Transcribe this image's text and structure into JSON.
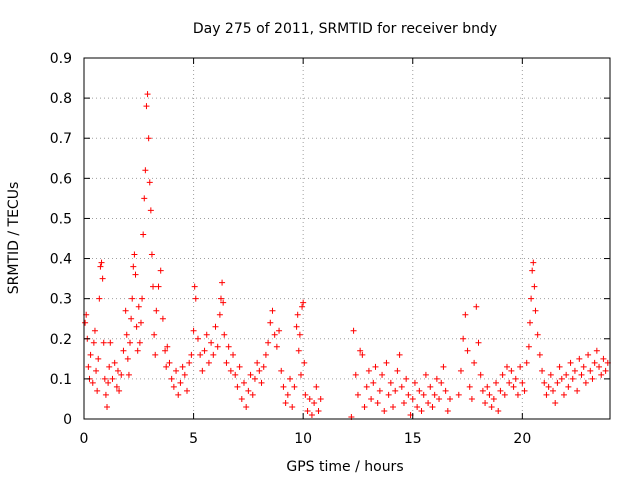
{
  "chart_data": {
    "type": "scatter",
    "title": "Day 275 of 2011, SRMTID for receiver bndy",
    "xlabel": "GPS time / hours",
    "ylabel": "SRMTID / TECUs",
    "xlim": [
      0,
      24
    ],
    "ylim": [
      0,
      0.9
    ],
    "xticks": [
      0,
      5,
      10,
      15,
      20
    ],
    "xtick_labels": [
      "0",
      "5",
      "10",
      "15",
      "20"
    ],
    "yticks": [
      0,
      0.1,
      0.2,
      0.3,
      0.4,
      0.5,
      0.6,
      0.7,
      0.8,
      0.9
    ],
    "ytick_labels": [
      "0",
      "0.1",
      "0.2",
      "0.3",
      "0.4",
      "0.5",
      "0.6",
      "0.7",
      "0.8",
      "0.9"
    ],
    "grid": true,
    "marker": "+",
    "color": "#ff0000",
    "series": [
      {
        "name": "SRMTID",
        "points": [
          [
            0.05,
            0.24
          ],
          [
            0.1,
            0.26
          ],
          [
            0.15,
            0.2
          ],
          [
            0.2,
            0.13
          ],
          [
            0.25,
            0.1
          ],
          [
            0.3,
            0.16
          ],
          [
            0.4,
            0.09
          ],
          [
            0.45,
            0.19
          ],
          [
            0.5,
            0.22
          ],
          [
            0.55,
            0.12
          ],
          [
            0.6,
            0.07
          ],
          [
            0.65,
            0.15
          ],
          [
            0.7,
            0.3
          ],
          [
            0.75,
            0.38
          ],
          [
            0.8,
            0.39
          ],
          [
            0.85,
            0.35
          ],
          [
            0.9,
            0.19
          ],
          [
            0.95,
            0.1
          ],
          [
            1.0,
            0.06
          ],
          [
            1.05,
            0.03
          ],
          [
            1.1,
            0.09
          ],
          [
            1.15,
            0.13
          ],
          [
            1.2,
            0.19
          ],
          [
            1.3,
            0.1
          ],
          [
            1.4,
            0.14
          ],
          [
            1.5,
            0.08
          ],
          [
            1.55,
            0.12
          ],
          [
            1.6,
            0.07
          ],
          [
            1.7,
            0.11
          ],
          [
            1.8,
            0.17
          ],
          [
            1.9,
            0.27
          ],
          [
            1.95,
            0.21
          ],
          [
            2.0,
            0.15
          ],
          [
            2.05,
            0.11
          ],
          [
            2.1,
            0.19
          ],
          [
            2.15,
            0.25
          ],
          [
            2.2,
            0.3
          ],
          [
            2.25,
            0.38
          ],
          [
            2.3,
            0.41
          ],
          [
            2.35,
            0.36
          ],
          [
            2.4,
            0.23
          ],
          [
            2.45,
            0.17
          ],
          [
            2.5,
            0.28
          ],
          [
            2.55,
            0.19
          ],
          [
            2.6,
            0.24
          ],
          [
            2.65,
            0.3
          ],
          [
            2.7,
            0.46
          ],
          [
            2.75,
            0.55
          ],
          [
            2.8,
            0.62
          ],
          [
            2.85,
            0.78
          ],
          [
            2.9,
            0.81
          ],
          [
            2.95,
            0.7
          ],
          [
            3.0,
            0.59
          ],
          [
            3.05,
            0.52
          ],
          [
            3.1,
            0.41
          ],
          [
            3.15,
            0.33
          ],
          [
            3.2,
            0.21
          ],
          [
            3.25,
            0.16
          ],
          [
            3.3,
            0.27
          ],
          [
            3.4,
            0.33
          ],
          [
            3.5,
            0.37
          ],
          [
            3.6,
            0.25
          ],
          [
            3.7,
            0.17
          ],
          [
            3.75,
            0.13
          ],
          [
            3.8,
            0.18
          ],
          [
            3.9,
            0.14
          ],
          [
            4.0,
            0.1
          ],
          [
            4.1,
            0.08
          ],
          [
            4.2,
            0.12
          ],
          [
            4.3,
            0.06
          ],
          [
            4.4,
            0.09
          ],
          [
            4.5,
            0.13
          ],
          [
            4.6,
            0.11
          ],
          [
            4.7,
            0.07
          ],
          [
            4.8,
            0.14
          ],
          [
            4.9,
            0.16
          ],
          [
            5.0,
            0.22
          ],
          [
            5.05,
            0.33
          ],
          [
            5.1,
            0.3
          ],
          [
            5.2,
            0.2
          ],
          [
            5.3,
            0.16
          ],
          [
            5.4,
            0.12
          ],
          [
            5.5,
            0.17
          ],
          [
            5.6,
            0.21
          ],
          [
            5.7,
            0.14
          ],
          [
            5.8,
            0.19
          ],
          [
            5.9,
            0.16
          ],
          [
            6.0,
            0.23
          ],
          [
            6.1,
            0.18
          ],
          [
            6.2,
            0.26
          ],
          [
            6.25,
            0.3
          ],
          [
            6.3,
            0.34
          ],
          [
            6.35,
            0.29
          ],
          [
            6.4,
            0.21
          ],
          [
            6.5,
            0.14
          ],
          [
            6.6,
            0.18
          ],
          [
            6.7,
            0.12
          ],
          [
            6.8,
            0.16
          ],
          [
            6.9,
            0.11
          ],
          [
            7.0,
            0.08
          ],
          [
            7.1,
            0.13
          ],
          [
            7.2,
            0.05
          ],
          [
            7.3,
            0.09
          ],
          [
            7.4,
            0.03
          ],
          [
            7.5,
            0.07
          ],
          [
            7.6,
            0.11
          ],
          [
            7.7,
            0.06
          ],
          [
            7.8,
            0.1
          ],
          [
            7.9,
            0.14
          ],
          [
            8.0,
            0.12
          ],
          [
            8.1,
            0.09
          ],
          [
            8.2,
            0.13
          ],
          [
            8.3,
            0.16
          ],
          [
            8.4,
            0.19
          ],
          [
            8.5,
            0.24
          ],
          [
            8.6,
            0.27
          ],
          [
            8.7,
            0.21
          ],
          [
            8.8,
            0.18
          ],
          [
            8.9,
            0.22
          ],
          [
            9.0,
            0.12
          ],
          [
            9.1,
            0.08
          ],
          [
            9.2,
            0.04
          ],
          [
            9.3,
            0.06
          ],
          [
            9.4,
            0.1
          ],
          [
            9.5,
            0.03
          ],
          [
            9.6,
            0.08
          ],
          [
            9.7,
            0.23
          ],
          [
            9.75,
            0.26
          ],
          [
            9.8,
            0.17
          ],
          [
            9.85,
            0.21
          ],
          [
            9.9,
            0.11
          ],
          [
            9.95,
            0.28
          ],
          [
            10.0,
            0.29
          ],
          [
            10.05,
            0.14
          ],
          [
            10.1,
            0.06
          ],
          [
            10.2,
            0.02
          ],
          [
            10.3,
            0.05
          ],
          [
            10.4,
            0.01
          ],
          [
            10.5,
            0.04
          ],
          [
            10.6,
            0.08
          ],
          [
            10.7,
            0.02
          ],
          [
            10.8,
            0.05
          ],
          [
            12.2,
            0.005
          ],
          [
            12.3,
            0.22
          ],
          [
            12.4,
            0.11
          ],
          [
            12.5,
            0.06
          ],
          [
            12.6,
            0.17
          ],
          [
            12.7,
            0.16
          ],
          [
            12.8,
            0.03
          ],
          [
            12.9,
            0.08
          ],
          [
            13.0,
            0.12
          ],
          [
            13.1,
            0.05
          ],
          [
            13.2,
            0.09
          ],
          [
            13.3,
            0.13
          ],
          [
            13.4,
            0.04
          ],
          [
            13.5,
            0.07
          ],
          [
            13.6,
            0.11
          ],
          [
            13.7,
            0.02
          ],
          [
            13.8,
            0.14
          ],
          [
            13.9,
            0.06
          ],
          [
            14.0,
            0.09
          ],
          [
            14.1,
            0.03
          ],
          [
            14.2,
            0.07
          ],
          [
            14.3,
            0.12
          ],
          [
            14.4,
            0.16
          ],
          [
            14.5,
            0.08
          ],
          [
            14.6,
            0.04
          ],
          [
            14.7,
            0.1
          ],
          [
            14.8,
            0.06
          ],
          [
            14.9,
            0.01
          ],
          [
            15.0,
            0.05
          ],
          [
            15.1,
            0.09
          ],
          [
            15.2,
            0.03
          ],
          [
            15.3,
            0.07
          ],
          [
            15.4,
            0.02
          ],
          [
            15.5,
            0.06
          ],
          [
            15.6,
            0.11
          ],
          [
            15.7,
            0.04
          ],
          [
            15.8,
            0.08
          ],
          [
            15.9,
            0.03
          ],
          [
            16.0,
            0.06
          ],
          [
            16.1,
            0.1
          ],
          [
            16.2,
            0.05
          ],
          [
            16.3,
            0.09
          ],
          [
            16.4,
            0.13
          ],
          [
            16.5,
            0.07
          ],
          [
            16.6,
            0.02
          ],
          [
            16.7,
            0.05
          ],
          [
            17.1,
            0.06
          ],
          [
            17.2,
            0.12
          ],
          [
            17.3,
            0.2
          ],
          [
            17.4,
            0.26
          ],
          [
            17.5,
            0.17
          ],
          [
            17.6,
            0.08
          ],
          [
            17.7,
            0.05
          ],
          [
            17.8,
            0.14
          ],
          [
            17.9,
            0.28
          ],
          [
            18.0,
            0.19
          ],
          [
            18.1,
            0.11
          ],
          [
            18.2,
            0.07
          ],
          [
            18.3,
            0.04
          ],
          [
            18.4,
            0.08
          ],
          [
            18.5,
            0.06
          ],
          [
            18.6,
            0.03
          ],
          [
            18.7,
            0.05
          ],
          [
            18.8,
            0.09
          ],
          [
            18.9,
            0.02
          ],
          [
            19.0,
            0.07
          ],
          [
            19.1,
            0.11
          ],
          [
            19.2,
            0.06
          ],
          [
            19.3,
            0.13
          ],
          [
            19.4,
            0.09
          ],
          [
            19.5,
            0.12
          ],
          [
            19.6,
            0.08
          ],
          [
            19.7,
            0.1
          ],
          [
            19.8,
            0.06
          ],
          [
            19.9,
            0.13
          ],
          [
            20.0,
            0.09
          ],
          [
            20.1,
            0.07
          ],
          [
            20.2,
            0.14
          ],
          [
            20.3,
            0.18
          ],
          [
            20.35,
            0.24
          ],
          [
            20.4,
            0.3
          ],
          [
            20.45,
            0.37
          ],
          [
            20.5,
            0.39
          ],
          [
            20.55,
            0.33
          ],
          [
            20.6,
            0.27
          ],
          [
            20.7,
            0.21
          ],
          [
            20.8,
            0.16
          ],
          [
            20.9,
            0.12
          ],
          [
            21.0,
            0.09
          ],
          [
            21.1,
            0.06
          ],
          [
            21.2,
            0.08
          ],
          [
            21.3,
            0.11
          ],
          [
            21.4,
            0.07
          ],
          [
            21.5,
            0.04
          ],
          [
            21.6,
            0.09
          ],
          [
            21.7,
            0.13
          ],
          [
            21.8,
            0.1
          ],
          [
            21.9,
            0.06
          ],
          [
            22.0,
            0.11
          ],
          [
            22.1,
            0.08
          ],
          [
            22.2,
            0.14
          ],
          [
            22.3,
            0.1
          ],
          [
            22.4,
            0.12
          ],
          [
            22.5,
            0.07
          ],
          [
            22.6,
            0.15
          ],
          [
            22.7,
            0.11
          ],
          [
            22.8,
            0.13
          ],
          [
            22.9,
            0.09
          ],
          [
            23.0,
            0.16
          ],
          [
            23.1,
            0.12
          ],
          [
            23.2,
            0.1
          ],
          [
            23.3,
            0.14
          ],
          [
            23.4,
            0.17
          ],
          [
            23.5,
            0.13
          ],
          [
            23.6,
            0.11
          ],
          [
            23.7,
            0.15
          ],
          [
            23.8,
            0.12
          ],
          [
            23.9,
            0.14
          ]
        ]
      }
    ]
  }
}
